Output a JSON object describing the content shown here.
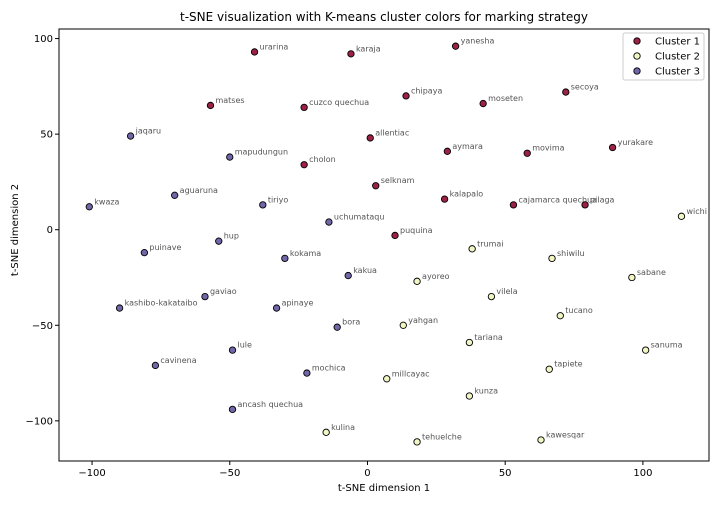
{
  "chart_data": {
    "type": "scatter",
    "title": "t-SNE visualization with K-means cluster colors for marking strategy",
    "xlabel": "t-SNE dimension 1",
    "ylabel": "t-SNE dimension 2",
    "xlim": [
      -112,
      124
    ],
    "ylim": [
      -121,
      105
    ],
    "xticks": [
      -100,
      -50,
      0,
      50,
      100
    ],
    "yticks": [
      -100,
      -50,
      0,
      50,
      100
    ],
    "xtick_labels": [
      "−100",
      "−50",
      "0",
      "50",
      "100"
    ],
    "ytick_labels": [
      "−100",
      "−50",
      "0",
      "50",
      "100"
    ],
    "grid": false,
    "legend_position": "top-right",
    "colors": {
      "Cluster 1": "#9b2145",
      "Cluster 2": "#f2f5c4",
      "Cluster 3": "#6f67a8"
    },
    "series": [
      {
        "name": "Cluster 1",
        "points": [
          {
            "label": "urarina",
            "x": -41,
            "y": 93
          },
          {
            "label": "karaja",
            "x": -6,
            "y": 92
          },
          {
            "label": "yanesha",
            "x": 32,
            "y": 96
          },
          {
            "label": "matses",
            "x": -57,
            "y": 65
          },
          {
            "label": "cuzco quechua",
            "x": -23,
            "y": 64
          },
          {
            "label": "chipaya",
            "x": 14,
            "y": 70
          },
          {
            "label": "moseten",
            "x": 42,
            "y": 66
          },
          {
            "label": "secoya",
            "x": 72,
            "y": 72
          },
          {
            "label": "allentiac",
            "x": 1,
            "y": 48
          },
          {
            "label": "aymara",
            "x": 29,
            "y": 41
          },
          {
            "label": "movima",
            "x": 58,
            "y": 40
          },
          {
            "label": "yurakare",
            "x": 89,
            "y": 43
          },
          {
            "label": "cholon",
            "x": -23,
            "y": 34
          },
          {
            "label": "selknam",
            "x": 3,
            "y": 23
          },
          {
            "label": "kalapalo",
            "x": 28,
            "y": 16
          },
          {
            "label": "cajamarca quechua",
            "x": 53,
            "y": 13
          },
          {
            "label": "pilaga",
            "x": 79,
            "y": 13
          },
          {
            "label": "puquina",
            "x": 10,
            "y": -3
          }
        ]
      },
      {
        "name": "Cluster 2",
        "points": [
          {
            "label": "wichi",
            "x": 114,
            "y": 7
          },
          {
            "label": "trumai",
            "x": 38,
            "y": -10
          },
          {
            "label": "shiwilu",
            "x": 67,
            "y": -15
          },
          {
            "label": "sabane",
            "x": 96,
            "y": -25
          },
          {
            "label": "ayoreo",
            "x": 18,
            "y": -27
          },
          {
            "label": "vilela",
            "x": 45,
            "y": -35
          },
          {
            "label": "tucano",
            "x": 70,
            "y": -45
          },
          {
            "label": "yahgan",
            "x": 13,
            "y": -50
          },
          {
            "label": "tariana",
            "x": 37,
            "y": -59
          },
          {
            "label": "sanuma",
            "x": 101,
            "y": -63
          },
          {
            "label": "millcayac",
            "x": 7,
            "y": -78
          },
          {
            "label": "tapiete",
            "x": 66,
            "y": -73
          },
          {
            "label": "kunza",
            "x": 37,
            "y": -87
          },
          {
            "label": "kulina",
            "x": -15,
            "y": -106
          },
          {
            "label": "tehuelche",
            "x": 18,
            "y": -111
          },
          {
            "label": "kawesqar",
            "x": 63,
            "y": -110
          }
        ]
      },
      {
        "name": "Cluster 3",
        "points": [
          {
            "label": "jaqaru",
            "x": -86,
            "y": 49
          },
          {
            "label": "mapudungun",
            "x": -50,
            "y": 38
          },
          {
            "label": "aguaruna",
            "x": -70,
            "y": 18
          },
          {
            "label": "kwaza",
            "x": -101,
            "y": 12
          },
          {
            "label": "tiriyo",
            "x": -38,
            "y": 13
          },
          {
            "label": "uchumataqu",
            "x": -14,
            "y": 4
          },
          {
            "label": "hup",
            "x": -54,
            "y": -6
          },
          {
            "label": "puinave",
            "x": -81,
            "y": -12
          },
          {
            "label": "kokama",
            "x": -30,
            "y": -15
          },
          {
            "label": "kakua",
            "x": -7,
            "y": -24
          },
          {
            "label": "gaviao",
            "x": -59,
            "y": -35
          },
          {
            "label": "kashibo-kakataibo",
            "x": -90,
            "y": -41
          },
          {
            "label": "apinaye",
            "x": -33,
            "y": -41
          },
          {
            "label": "bora",
            "x": -11,
            "y": -51
          },
          {
            "label": "lule",
            "x": -49,
            "y": -63
          },
          {
            "label": "cavinena",
            "x": -77,
            "y": -71
          },
          {
            "label": "mochica",
            "x": -22,
            "y": -75
          },
          {
            "label": "ancash quechua",
            "x": -49,
            "y": -94
          }
        ]
      }
    ]
  }
}
